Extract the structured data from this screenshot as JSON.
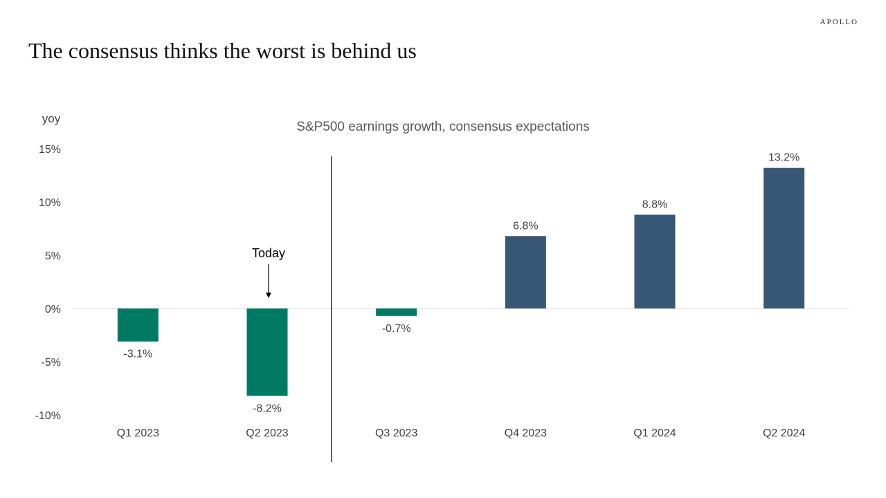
{
  "brand": "APOLLO",
  "page_title": "The consensus thinks the worst is behind us",
  "colors": {
    "negative_bar": "#007A63",
    "positive_bar": "#375775",
    "text": "#404040",
    "zero_line": "#d9d9d9"
  },
  "chart_data": {
    "type": "bar",
    "title": "S&P500 earnings growth, consensus expectations",
    "ylabel": "yoy",
    "xlabel": "",
    "ylim": [
      -10,
      15
    ],
    "yticks": [
      15,
      10,
      5,
      0,
      -5,
      -10
    ],
    "ytick_labels": [
      "15%",
      "10%",
      "5%",
      "0%",
      "-5%",
      "-10%"
    ],
    "categories": [
      "Q1 2023",
      "Q2 2023",
      "Q3 2023",
      "Q4 2023",
      "Q1 2024",
      "Q2 2024"
    ],
    "values": [
      -3.1,
      -8.2,
      -0.7,
      6.8,
      8.8,
      13.2
    ],
    "data_labels": [
      "-3.1%",
      "-8.2%",
      "-0.7%",
      "6.8%",
      "8.8%",
      "13.2%"
    ],
    "grid": false,
    "annotation": {
      "text": "Today",
      "category_index": 1
    },
    "divider_after_index": 1
  }
}
